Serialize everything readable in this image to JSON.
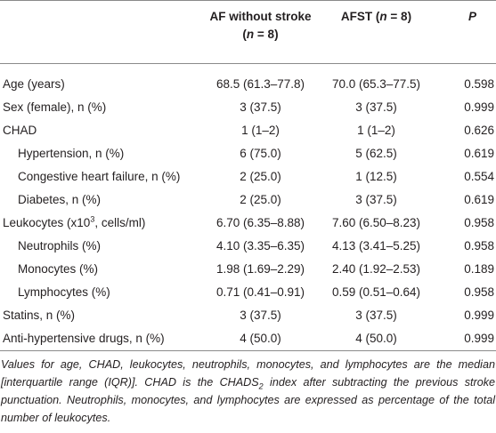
{
  "table": {
    "header": [
      {
        "lines": [
          [
            {
              "text": "AF without stroke"
            }
          ],
          [
            {
              "text": "("
            },
            {
              "text": "n",
              "italic": true
            },
            {
              "text": " = 8)"
            }
          ]
        ]
      },
      {
        "lines": [
          [
            {
              "text": "AFST ("
            },
            {
              "text": "n",
              "italic": true
            },
            {
              "text": " = 8)"
            }
          ]
        ]
      },
      {
        "lines": [
          [
            {
              "text": "P",
              "italic": true
            }
          ]
        ]
      }
    ],
    "rows": [
      {
        "label": [
          {
            "text": "Age (years)"
          }
        ],
        "values": [
          "68.5 (61.3–77.8)",
          "70.0 (65.3–77.5)",
          "0.598"
        ]
      },
      {
        "label": [
          {
            "text": "Sex (female), n (%)"
          }
        ],
        "values": [
          "3 (37.5)",
          "3 (37.5)",
          "0.999"
        ]
      },
      {
        "label": [
          {
            "text": "CHAD"
          }
        ],
        "values": [
          "1 (1–2)",
          "1 (1–2)",
          "0.626"
        ]
      },
      {
        "label": [
          {
            "text": "Hypertension, n (%)"
          }
        ],
        "indent": true,
        "values": [
          "6 (75.0)",
          "5 (62.5)",
          "0.619"
        ]
      },
      {
        "label": [
          {
            "text": "Congestive heart failure, n (%)"
          }
        ],
        "indent": true,
        "values": [
          "2 (25.0)",
          "1 (12.5)",
          "0.554"
        ]
      },
      {
        "label": [
          {
            "text": "Diabetes, n (%)"
          }
        ],
        "indent": true,
        "values": [
          "2 (25.0)",
          "3 (37.5)",
          "0.619"
        ]
      },
      {
        "label": [
          {
            "text": "Leukocytes (x10"
          },
          {
            "text": "3",
            "sup": true
          },
          {
            "text": ", cells/ml)"
          }
        ],
        "values": [
          "6.70 (6.35–8.88)",
          "7.60 (6.50–8.23)",
          "0.958"
        ]
      },
      {
        "label": [
          {
            "text": "Neutrophils (%)"
          }
        ],
        "indent": true,
        "values": [
          "4.10 (3.35–6.35)",
          "4.13 (3.41–5.25)",
          "0.958"
        ]
      },
      {
        "label": [
          {
            "text": "Monocytes (%)"
          }
        ],
        "indent": true,
        "values": [
          "1.98 (1.69–2.29)",
          "2.40 (1.92–2.53)",
          "0.189"
        ]
      },
      {
        "label": [
          {
            "text": "Lymphocytes (%)"
          }
        ],
        "indent": true,
        "values": [
          "0.71 (0.41–0.91)",
          "0.59 (0.51–0.64)",
          "0.958"
        ]
      },
      {
        "label": [
          {
            "text": "Statins, n (%)"
          }
        ],
        "values": [
          "3 (37.5)",
          "3 (37.5)",
          "0.999"
        ]
      },
      {
        "label": [
          {
            "text": "Anti-hypertensive drugs, n (%)"
          }
        ],
        "values": [
          "4 (50.0)",
          "4 (50.0)",
          "0.999"
        ]
      }
    ],
    "footnote": [
      {
        "text": "Values for age, CHAD, leukocytes, neutrophils, monocytes, and lymphocytes are the median [interquartile range (IQR)]. CHAD is the CHADS"
      },
      {
        "text": "2",
        "sub": true
      },
      {
        "text": " index after subtracting the previous stroke punctuation. Neutrophils, monocytes, and lymphocytes are expressed as percentage of the total number of leukocytes."
      }
    ]
  }
}
